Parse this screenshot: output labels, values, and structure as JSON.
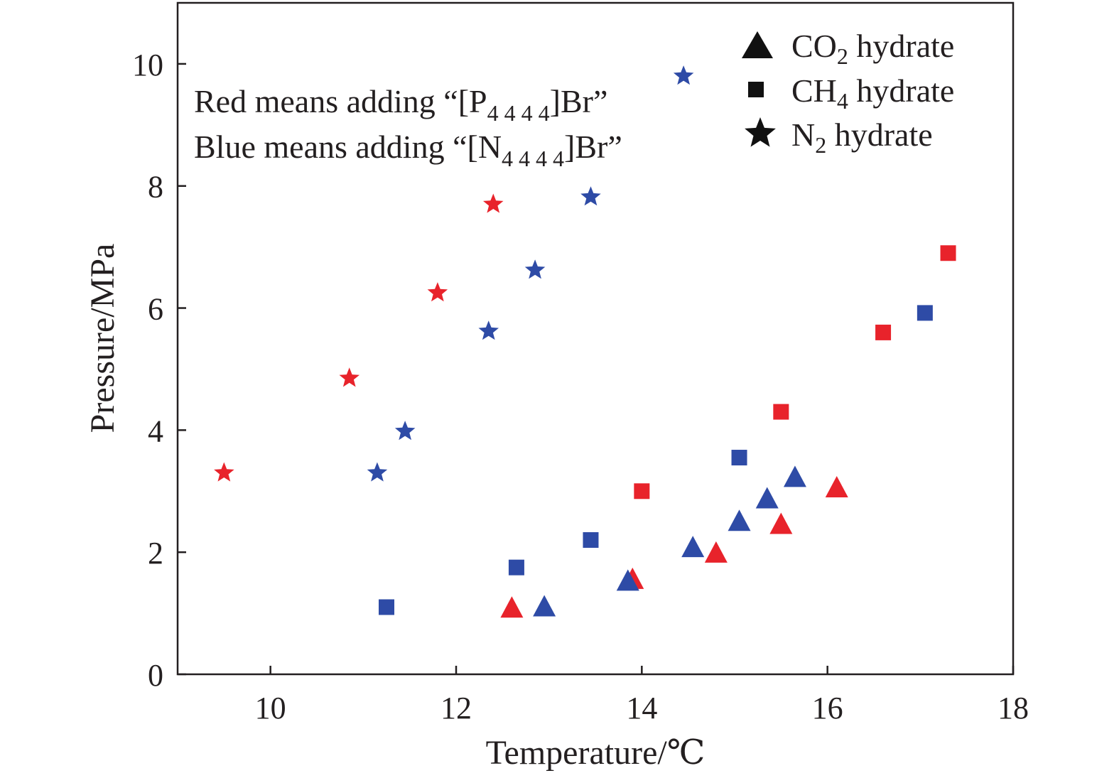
{
  "colors": {
    "red": "#e8232b",
    "blue": "#2e4ba6",
    "axis": "#231f20",
    "legend_marker": "#111111"
  },
  "annotations": {
    "red_prefix": "Red means adding “[P",
    "red_sub": "4 4 4 4",
    "red_suffix": "]Br”",
    "blue_prefix": "Blue means adding “[N",
    "blue_sub": "4 4 4 4",
    "blue_suffix": "]Br”"
  },
  "legend": {
    "co2_prefix": "CO",
    "co2_sub": "2",
    "co2_suffix": " hydrate",
    "co2_icon": "triangle-icon",
    "ch4_prefix": "CH",
    "ch4_sub": "4",
    "ch4_suffix": " hydrate",
    "ch4_icon": "square-icon",
    "n2_prefix": "N",
    "n2_sub": "2",
    "n2_suffix": " hydrate",
    "n2_icon": "star-icon"
  },
  "chart_data": {
    "type": "scatter",
    "xlabel": "Temperature/℃",
    "ylabel": "Pressure/MPa",
    "xlim": [
      9,
      18
    ],
    "ylim": [
      0,
      11
    ],
    "xticks": [
      10,
      12,
      14,
      16,
      18
    ],
    "yticks": [
      0,
      2,
      4,
      6,
      8,
      10
    ],
    "grid": false,
    "legend_position": "top-right",
    "series": [
      {
        "gas": "CO2",
        "additive": "[P4444]Br",
        "color": "red",
        "marker": "triangle",
        "points": [
          [
            12.6,
            1.08
          ],
          [
            13.9,
            1.55
          ],
          [
            14.8,
            1.98
          ],
          [
            15.5,
            2.45
          ],
          [
            16.1,
            3.05
          ]
        ]
      },
      {
        "gas": "CO2",
        "additive": "[N4444]Br",
        "color": "blue",
        "marker": "triangle",
        "points": [
          [
            12.95,
            1.1
          ],
          [
            13.85,
            1.52
          ],
          [
            14.55,
            2.07
          ],
          [
            15.05,
            2.5
          ],
          [
            15.35,
            2.87
          ],
          [
            15.65,
            3.22
          ]
        ]
      },
      {
        "gas": "CH4",
        "additive": "[P4444]Br",
        "color": "red",
        "marker": "square",
        "points": [
          [
            14.0,
            3.0
          ],
          [
            15.5,
            4.3
          ],
          [
            16.6,
            5.6
          ],
          [
            17.3,
            6.9
          ]
        ]
      },
      {
        "gas": "CH4",
        "additive": "[N4444]Br",
        "color": "blue",
        "marker": "square",
        "points": [
          [
            11.25,
            1.1
          ],
          [
            12.65,
            1.75
          ],
          [
            13.45,
            2.2
          ],
          [
            15.05,
            3.55
          ],
          [
            17.05,
            5.92
          ]
        ]
      },
      {
        "gas": "N2",
        "additive": "[P4444]Br",
        "color": "red",
        "marker": "star",
        "points": [
          [
            9.5,
            3.3
          ],
          [
            10.85,
            4.85
          ],
          [
            11.8,
            6.25
          ],
          [
            12.4,
            7.7
          ]
        ]
      },
      {
        "gas": "N2",
        "additive": "[N4444]Br",
        "color": "blue",
        "marker": "star",
        "points": [
          [
            11.15,
            3.3
          ],
          [
            11.45,
            3.98
          ],
          [
            12.35,
            5.62
          ],
          [
            12.85,
            6.62
          ],
          [
            13.45,
            7.82
          ],
          [
            14.45,
            9.8
          ]
        ]
      }
    ]
  }
}
